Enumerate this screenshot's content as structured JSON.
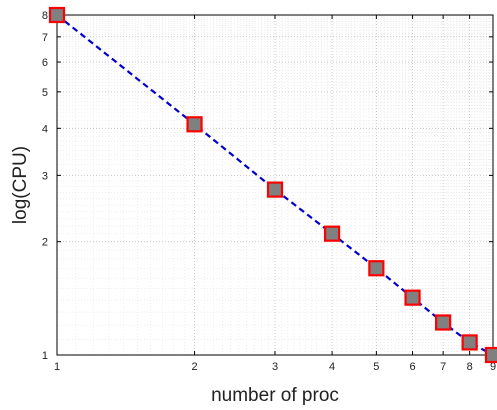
{
  "chart_data": {
    "type": "line",
    "title": "",
    "xlabel": "number of proc",
    "ylabel": "log(CPU)",
    "xscale": "log",
    "yscale": "log",
    "xlim": [
      1,
      9
    ],
    "ylim": [
      1,
      8
    ],
    "grid": true,
    "x_ticks": [
      "1",
      "2",
      "3",
      "4",
      "5",
      "6",
      "7",
      "8",
      "9"
    ],
    "y_ticks": [
      "1",
      "2",
      "3",
      "4",
      "5",
      "6",
      "7",
      "8"
    ],
    "series": [
      {
        "x": [
          1,
          2,
          3,
          4,
          5,
          6,
          7,
          8,
          9
        ],
        "y": [
          8.0,
          4.1,
          2.75,
          2.1,
          1.7,
          1.42,
          1.22,
          1.08,
          1.0
        ],
        "line_color": "#0000cc",
        "line_style": "dashed",
        "marker": "square",
        "marker_face_color": "#808080",
        "marker_edge_color": "#ff0000"
      }
    ]
  }
}
